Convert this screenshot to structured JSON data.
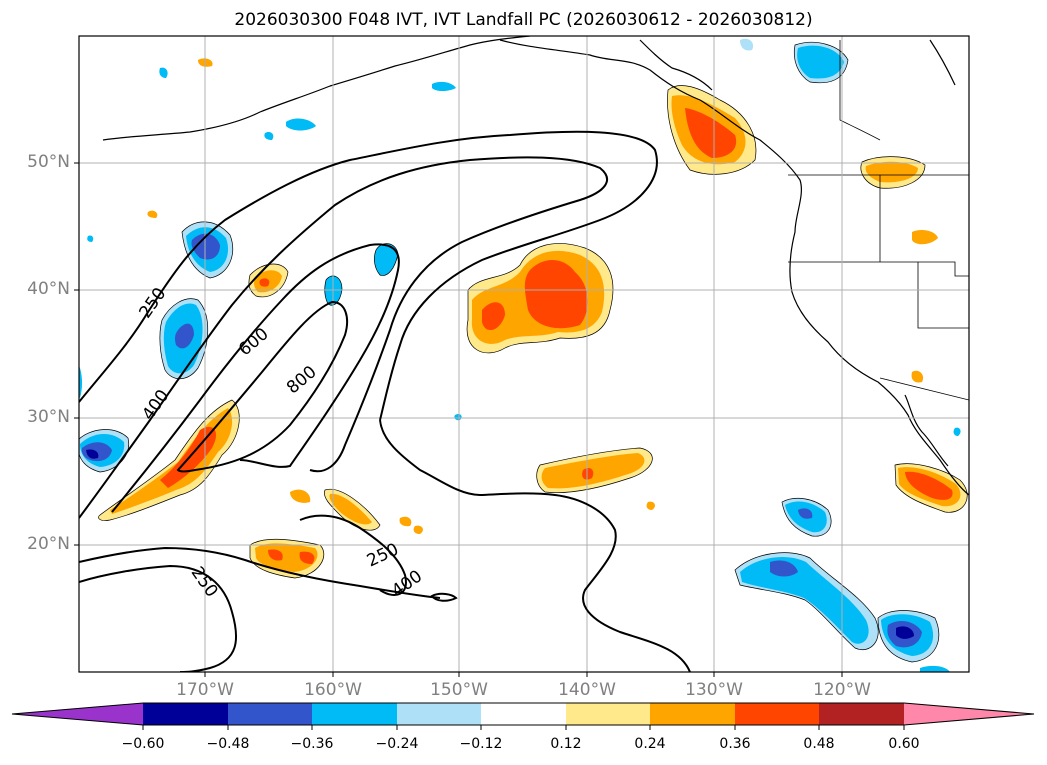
{
  "title": "2026030300 F048 IVT, IVT Landfall PC (2026030612 - 2026030812)",
  "map": {
    "lat_labels": [
      "50°N",
      "40°N",
      "30°N",
      "20°N"
    ],
    "lon_labels": [
      "170°W",
      "160°W",
      "150°W",
      "140°W",
      "130°W",
      "120°W"
    ],
    "grid": true,
    "contour_labels": [
      "250",
      "400",
      "600",
      "800",
      "250",
      "250",
      "400"
    ]
  },
  "colorbar": {
    "ticks": [
      "−0.60",
      "−0.48",
      "−0.36",
      "−0.24",
      "−0.12",
      "0.12",
      "0.24",
      "0.36",
      "0.48",
      "0.60"
    ],
    "colors": {
      "under": "#9933cc",
      "n060": "#000099",
      "n048": "#3355cc",
      "n036": "#00bbf5",
      "n024": "#aee0f8",
      "zero": "#ffffff",
      "p012": "#ffe98a",
      "p024": "#ffa500",
      "p036": "#ff4500",
      "p048": "#b22222",
      "over": "#ff88aa"
    }
  }
}
